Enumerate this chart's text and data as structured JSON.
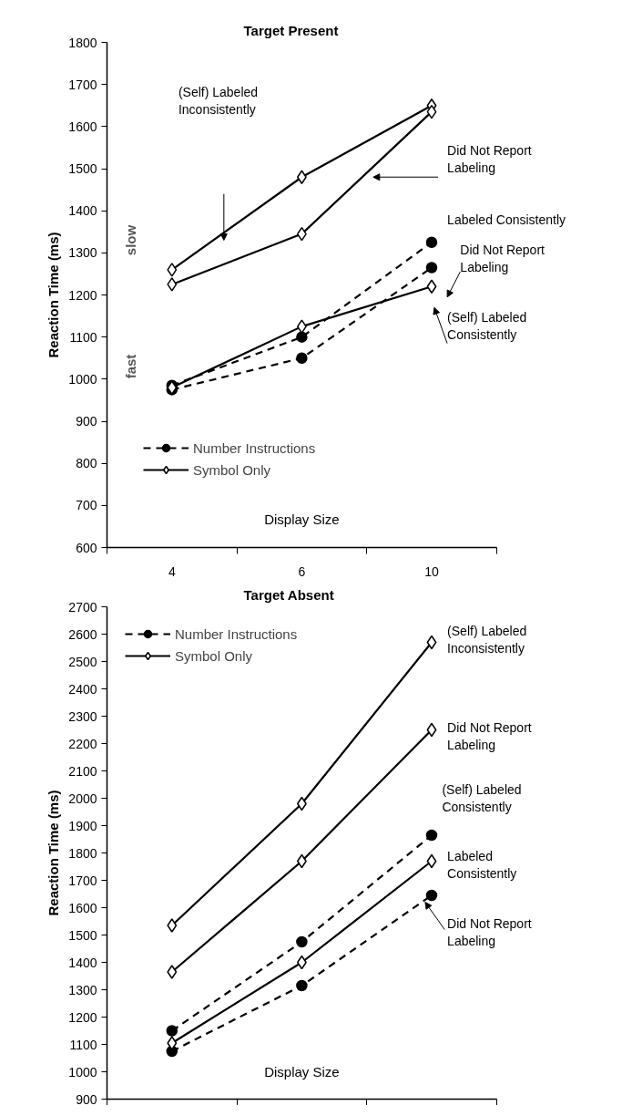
{
  "chart_data": [
    {
      "type": "line",
      "title": "Target Present",
      "xlabel": "Display Size",
      "ylabel": "Reaction Time (ms)",
      "categories": [
        "4",
        "6",
        "10"
      ],
      "ylim": [
        600,
        1800
      ],
      "yticks": [
        600,
        700,
        800,
        900,
        1000,
        1100,
        1200,
        1300,
        1400,
        1500,
        1600,
        1700,
        1800
      ],
      "grid": false,
      "legend": "bottom left",
      "series": [
        {
          "name": "Number Instructions",
          "color": "#000000",
          "marker": "circle",
          "line_style": "dashed",
          "values": [
            985,
            1100,
            1325
          ]
        },
        {
          "color": "#000000",
          "marker": "circle",
          "line_style": "dashed",
          "values": [
            975,
            1050,
            1265
          ]
        },
        {
          "name": "Symbol Only",
          "color": "#000000",
          "marker": "diamond",
          "line_style": "solid",
          "values": [
            1260,
            1480,
            1650
          ]
        },
        {
          "color": "#000000",
          "marker": "diamond",
          "line_style": "solid",
          "values": [
            1225,
            1345,
            1635
          ]
        },
        {
          "color": "#000000",
          "marker": "diamond",
          "line_style": "solid",
          "values": [
            980,
            1125,
            1220
          ]
        }
      ],
      "annotations": [
        "(Self) Labeled\nInconsistently",
        "Did Not Report\nLabeling",
        "Labeled Consistently",
        "Did Not Report\nLabeling",
        "(Self) Labeled\nConsistently",
        "slow",
        "fast"
      ]
    },
    {
      "type": "line",
      "title": "Target Absent",
      "xlabel": "Display Size",
      "ylabel": "Reaction Time (ms)",
      "categories": [
        null,
        null,
        null
      ],
      "tick_labels": "y",
      "ylim": [
        900,
        2700
      ],
      "yticks": [
        900,
        1000,
        1100,
        1200,
        1300,
        1400,
        1500,
        1600,
        1700,
        1800,
        1900,
        2000,
        2100,
        2200,
        2300,
        2400,
        2500,
        2600,
        2700
      ],
      "grid": false,
      "legend": "top left",
      "series": [
        {
          "name": "Number Instructions",
          "color": "#000000",
          "marker": "circle",
          "line_style": "dashed",
          "values": [
            1150,
            1475,
            1865
          ]
        },
        {
          "color": "#000000",
          "marker": "circle",
          "line_style": "dashed",
          "values": [
            1075,
            1315,
            1645
          ]
        },
        {
          "name": "Symbol Only",
          "color": "#000000",
          "marker": "diamond",
          "line_style": "solid",
          "values": [
            1535,
            1980,
            2570
          ]
        },
        {
          "color": "#000000",
          "marker": "diamond",
          "line_style": "solid",
          "values": [
            1365,
            1770,
            2250
          ]
        },
        {
          "color": "#000000",
          "marker": "diamond",
          "line_style": "solid",
          "values": [
            1105,
            1400,
            1770
          ]
        }
      ],
      "annotations": [
        "(Self) Labeled\nInconsistently",
        "Did Not Report\nLabeling",
        "(Self) Labeled\nConsistently",
        "Labeled\nConsistently",
        "Did Not Report\nLabeling"
      ]
    }
  ]
}
